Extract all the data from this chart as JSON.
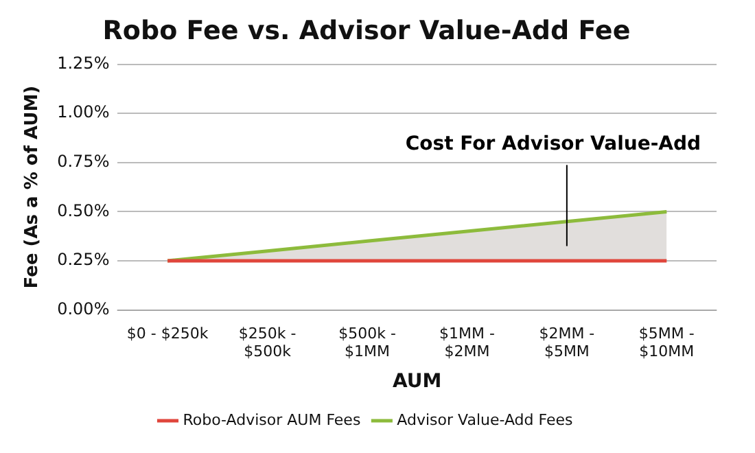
{
  "chart_data": {
    "type": "line",
    "title": "Robo Fee vs. Advisor Value-Add Fee",
    "xlabel": "AUM",
    "ylabel": "Fee (As a % of AUM)",
    "categories": [
      "$0 - $250k",
      "$250k - $500k",
      "$500k - $1MM",
      "$1MM - $2MM",
      "$2MM - $5MM",
      "$5MM - $10MM"
    ],
    "series": [
      {
        "name": "Robo-Advisor AUM Fees",
        "color": "#e0463c",
        "values": [
          0.25,
          0.25,
          0.25,
          0.25,
          0.25,
          0.25
        ]
      },
      {
        "name": "Advisor Value-Add Fees",
        "color": "#8dbb3c",
        "values": [
          0.25,
          0.3,
          0.35,
          0.4,
          0.45,
          0.5
        ],
        "lower": [
          0.25,
          0.25,
          0.25,
          0.25,
          0.25,
          0.25
        ],
        "upper": [
          0.25,
          0.3,
          0.35,
          0.4,
          0.45,
          0.5
        ]
      }
    ],
    "ylim": [
      0,
      1.25
    ],
    "yticks": [
      {
        "value": 0,
        "label": "0.00%"
      },
      {
        "value": 0.25,
        "label": "0.25%"
      },
      {
        "value": 0.5,
        "label": "0.50%"
      },
      {
        "value": 0.75,
        "label": "0.75%"
      },
      {
        "value": 1,
        "label": "1.00%"
      },
      {
        "value": 1.25,
        "label": "1.25%"
      }
    ],
    "annotations": [
      "Cost For Advisor Value-Add"
    ],
    "grid": "y",
    "legend": "bottom",
    "marker": "none",
    "line_style": "solid"
  }
}
